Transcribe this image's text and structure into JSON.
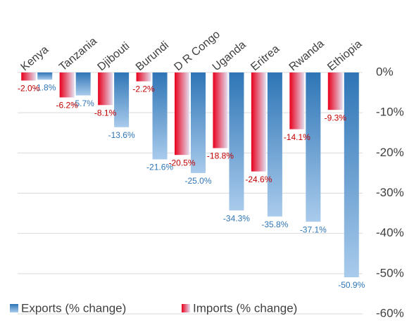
{
  "chart_data": {
    "type": "bar",
    "categories": [
      "Kenya",
      "Tanzania",
      "Djibouti",
      "Burundi",
      "D R Congo",
      "Uganda",
      "Eritrea",
      "Rwanda",
      "Ethiopia"
    ],
    "series": [
      {
        "name": "Exports (% change)",
        "color": "#2e75b6",
        "label_color": "#2e75b6",
        "values": [
          -1.8,
          -5.7,
          -13.6,
          -21.6,
          -25.0,
          -34.3,
          -35.8,
          -37.1,
          -50.9
        ],
        "value_labels": [
          "-1.8%",
          "-5.7%",
          "-13.6%",
          "-21.6%",
          "-25.0%",
          "-34.3%",
          "-35.8%",
          "-37.1%",
          "-50.9%"
        ]
      },
      {
        "name": "Imports (% change)",
        "color": "#e8001c",
        "label_color": "#c00000",
        "values": [
          -2.0,
          -6.2,
          -8.1,
          -2.2,
          -20.5,
          -18.8,
          -24.6,
          -14.1,
          -9.3
        ],
        "value_labels": [
          "-2.0%",
          "-6.2%",
          "-8.1%",
          "-2.2%",
          "-20.5%",
          "-18.8%",
          "-24.6%",
          "-14.1%",
          "-9.3%"
        ]
      }
    ],
    "ylim": [
      -60,
      0
    ],
    "yticks": [
      {
        "value": 0,
        "label": "0%"
      },
      {
        "value": -10,
        "label": "-10%"
      },
      {
        "value": -20,
        "label": "-20%"
      },
      {
        "value": -30,
        "label": "-30%"
      },
      {
        "value": -40,
        "label": "-40%"
      },
      {
        "value": -50,
        "label": "-50%"
      },
      {
        "value": -60,
        "label": "-60%"
      }
    ],
    "grid": true,
    "legend": "bottom"
  }
}
